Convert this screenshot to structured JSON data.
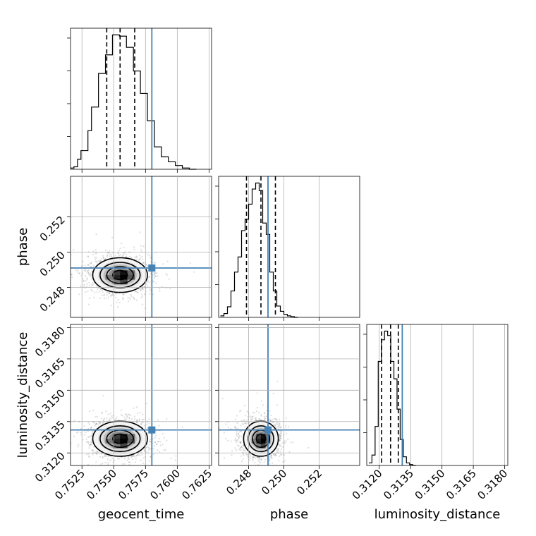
{
  "chart_data": {
    "type": "corner",
    "parameters": [
      "geocent_time",
      "phase",
      "luminosity_distance"
    ],
    "axis_labels": {
      "x": [
        "geocent_time",
        "phase",
        "luminosity_distance"
      ],
      "y": [
        "phase",
        "luminosity_distance"
      ]
    },
    "ranges": {
      "geocent_time": [
        0.7516,
        0.7627
      ],
      "phase": [
        0.2463,
        0.2543
      ],
      "luminosity_distance": [
        0.3114,
        0.31815
      ]
    },
    "ticks": {
      "geocent_time": [
        0.7525,
        0.755,
        0.7575,
        0.76,
        0.7625
      ],
      "phase": [
        0.248,
        0.25,
        0.252
      ],
      "luminosity_distance": [
        0.312,
        0.3135,
        0.315,
        0.3165,
        0.318
      ]
    },
    "tick_labels": {
      "geocent_time": [
        "0.7525",
        "0.7550",
        "0.7575",
        "0.7600",
        "0.7625"
      ],
      "phase": [
        "0.248",
        "0.250",
        "0.252"
      ],
      "luminosity_distance": [
        "0.3120",
        "0.3135",
        "0.3150",
        "0.3165",
        "0.3180"
      ]
    },
    "truths": {
      "geocent_time": 0.758,
      "phase": 0.2491,
      "luminosity_distance": 0.3131
    },
    "quantiles": {
      "geocent_time": [
        0.75445,
        0.7555,
        0.75665
      ],
      "phase": [
        0.24788,
        0.2487,
        0.24952
      ],
      "luminosity_distance": [
        0.31211,
        0.31254,
        0.31291
      ]
    },
    "histograms": {
      "geocent_time": {
        "bins": [
          0.7516,
          0.75187,
          0.75215,
          0.75242,
          0.7527,
          0.75297,
          0.75325,
          0.75352,
          0.7538,
          0.75407,
          0.75435,
          0.75462,
          0.7549,
          0.75517,
          0.75545,
          0.75572,
          0.756,
          0.75627,
          0.75655,
          0.75682,
          0.7571,
          0.75737,
          0.75765,
          0.75792,
          0.7582,
          0.75847,
          0.75875,
          0.75902,
          0.7593,
          0.75957,
          0.75985,
          0.7604,
          0.76095,
          0.7615
        ],
        "counts": [
          1,
          2,
          8,
          15,
          15,
          31,
          50,
          50,
          77,
          77,
          92,
          92,
          108,
          108,
          107,
          107,
          98,
          98,
          79,
          79,
          61,
          61,
          39,
          39,
          18,
          18,
          10,
          10,
          6,
          6,
          3,
          1,
          0
        ]
      },
      "phase": {
        "bins": [
          0.2464,
          0.2466,
          0.2468,
          0.247,
          0.2472,
          0.2474,
          0.2476,
          0.2478,
          0.248,
          0.2482,
          0.2484,
          0.2486,
          0.2488,
          0.249,
          0.2492,
          0.2494,
          0.2496,
          0.2498,
          0.25,
          0.2502,
          0.2504,
          0.2506,
          0.2508
        ],
        "counts": [
          2,
          5,
          14,
          35,
          60,
          80,
          115,
          130,
          150,
          170,
          178,
          168,
          125,
          110,
          60,
          35,
          15,
          8,
          4,
          2,
          1,
          0
        ]
      },
      "luminosity_distance": {
        "bins": [
          0.3115,
          0.31165,
          0.3118,
          0.31195,
          0.3121,
          0.31225,
          0.3124,
          0.31255,
          0.3127,
          0.31285,
          0.313,
          0.31315,
          0.3133,
          0.31345,
          0.3136,
          0.31375
        ],
        "counts": [
          3,
          12,
          45,
          120,
          145,
          155,
          150,
          120,
          100,
          65,
          30,
          10,
          3,
          1,
          0
        ]
      }
    },
    "pairs": [
      {
        "x": "geocent_time",
        "y": "phase",
        "center": [
          0.7555,
          0.2487
        ],
        "sigma": [
          0.00105,
          0.00048
        ]
      },
      {
        "x": "geocent_time",
        "y": "luminosity_distance",
        "center": [
          0.7555,
          0.31268
        ],
        "sigma": [
          0.00105,
          0.00041
        ]
      },
      {
        "x": "phase",
        "y": "luminosity_distance",
        "center": [
          0.2487,
          0.31268
        ],
        "sigma": [
          0.00048,
          0.00041
        ]
      }
    ],
    "grid": true
  }
}
